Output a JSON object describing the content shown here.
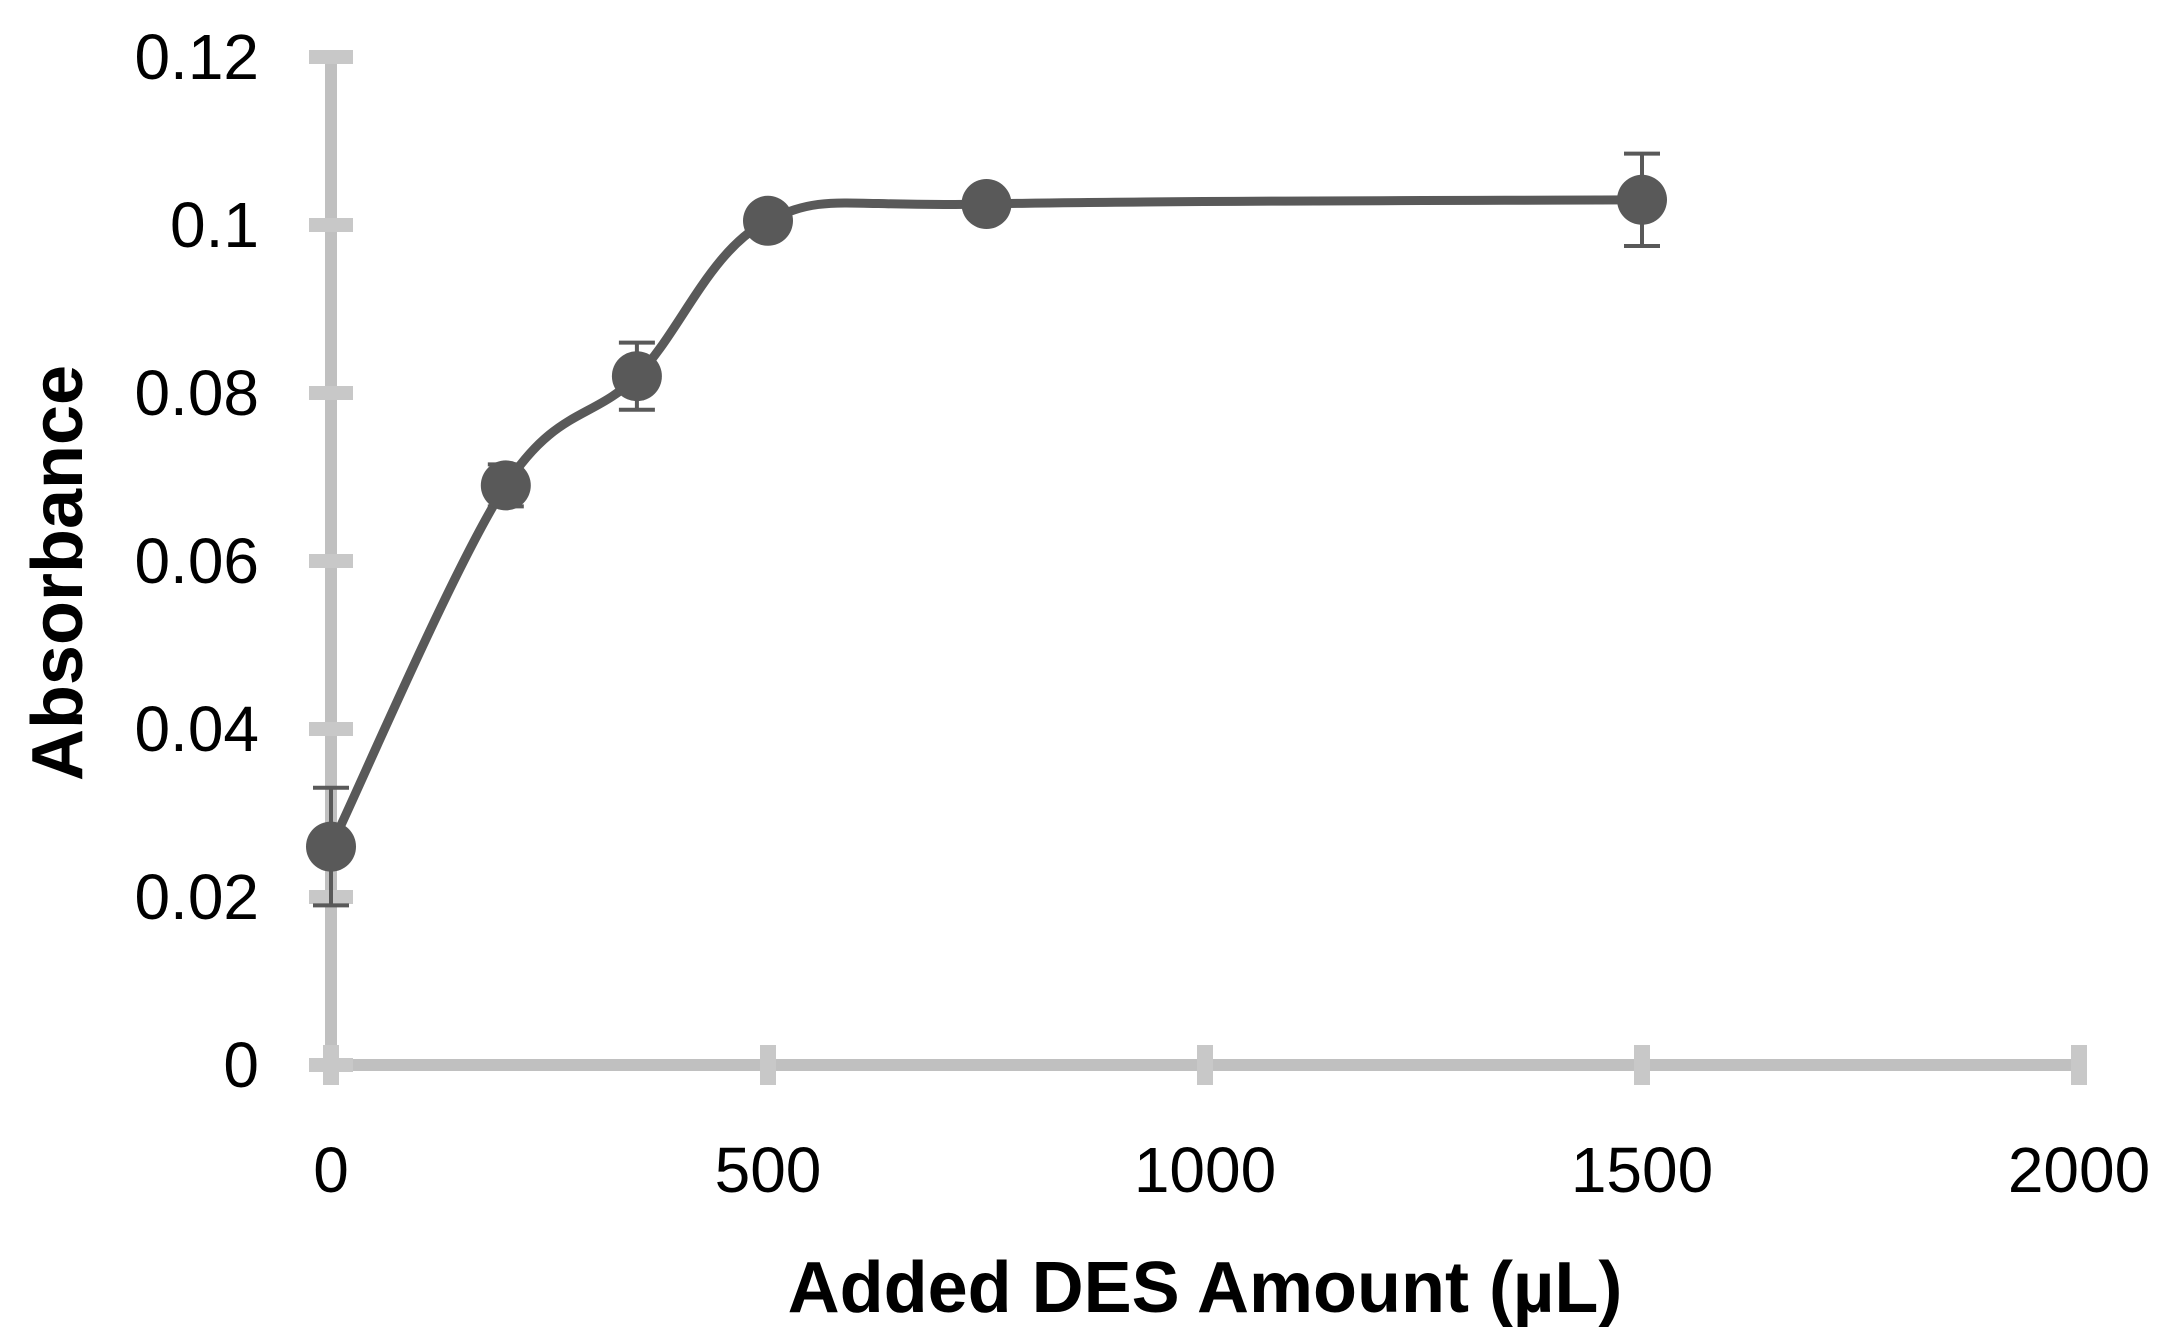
{
  "chart_data": {
    "type": "line",
    "title": "",
    "xlabel": "Added DES Amount (µL)",
    "ylabel": "Absorbance",
    "xlim": [
      0,
      2000
    ],
    "ylim": [
      0,
      0.12
    ],
    "x_ticks": [
      "0",
      "500",
      "1000",
      "1500",
      "2000"
    ],
    "y_ticks": [
      "0",
      "0.02",
      "0.04",
      "0.06",
      "0.08",
      "0.1",
      "0.12"
    ],
    "grid": false,
    "legend": "none",
    "smoothed": true,
    "series": [
      {
        "color": "#595959",
        "points": [
          {
            "x": 0,
            "y": 0.026,
            "err": 0.007
          },
          {
            "x": 200,
            "y": 0.069,
            "err": 0.0025
          },
          {
            "x": 350,
            "y": 0.082,
            "err": 0.004
          },
          {
            "x": 500,
            "y": 0.1005,
            "err": 0.001
          },
          {
            "x": 750,
            "y": 0.1025,
            "err": 0.0008
          },
          {
            "x": 1500,
            "y": 0.103,
            "err": 0.0055
          }
        ]
      }
    ],
    "axis_color": "#c0c0c0",
    "tick_color": "#c8c8c8"
  }
}
